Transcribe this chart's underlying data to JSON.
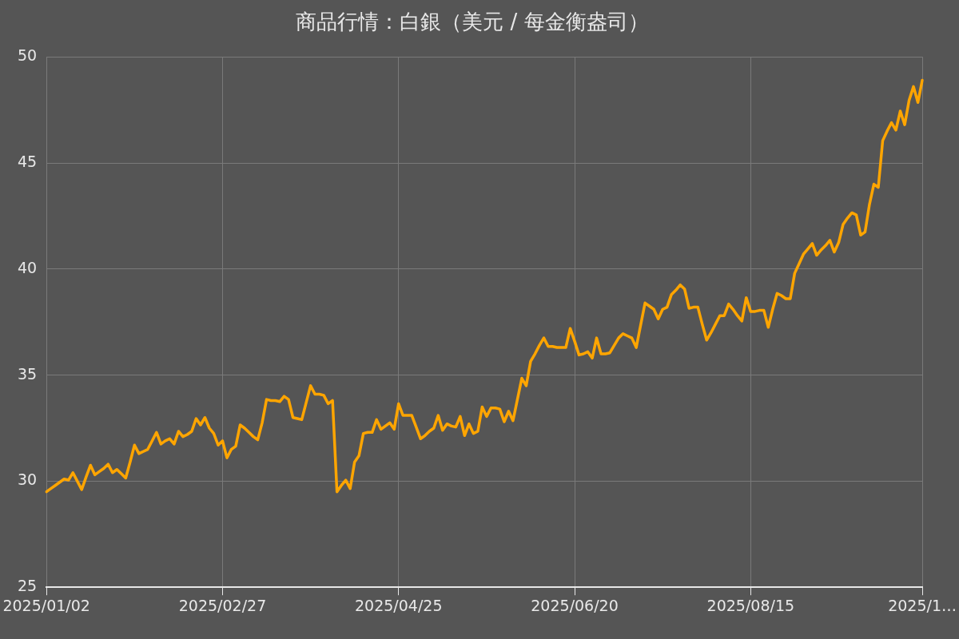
{
  "chart_data": {
    "type": "line",
    "title": "商品行情：白銀（美元 / 每金衡盎司）",
    "categories": [
      "2025/01/02",
      null,
      null,
      null,
      null,
      null,
      null,
      null,
      null,
      null,
      null,
      null,
      null,
      null,
      null,
      null,
      null,
      null,
      null,
      null,
      null,
      null,
      null,
      null,
      null,
      null,
      null,
      null,
      null,
      null,
      null,
      null,
      null,
      null,
      null,
      null,
      null,
      null,
      null,
      null,
      "2025/02/27",
      null,
      null,
      null,
      null,
      null,
      null,
      null,
      null,
      null,
      null,
      null,
      null,
      null,
      null,
      null,
      null,
      null,
      null,
      null,
      null,
      null,
      null,
      null,
      null,
      null,
      null,
      null,
      null,
      null,
      null,
      null,
      null,
      null,
      null,
      null,
      null,
      null,
      null,
      null,
      "2025/04/25",
      null,
      null,
      null,
      null,
      null,
      null,
      null,
      null,
      null,
      null,
      null,
      null,
      null,
      null,
      null,
      null,
      null,
      null,
      null,
      null,
      null,
      null,
      null,
      null,
      null,
      null,
      null,
      null,
      null,
      null,
      null,
      null,
      null,
      null,
      null,
      null,
      null,
      null,
      null,
      "2025/06/20",
      null,
      null,
      null,
      null,
      null,
      null,
      null,
      null,
      null,
      null,
      null,
      null,
      null,
      null,
      null,
      null,
      null,
      null,
      null,
      null,
      null,
      null,
      null,
      null,
      null,
      null,
      null,
      null,
      null,
      null,
      null,
      null,
      null,
      null,
      null,
      null,
      null,
      null,
      null,
      "2025/08/15",
      null,
      null,
      null,
      null,
      null,
      null,
      null,
      null,
      null,
      null,
      null,
      null,
      null,
      null,
      null,
      null,
      null,
      null,
      null,
      null,
      null,
      null,
      null,
      null,
      null,
      null,
      null,
      null,
      null,
      null,
      null,
      null,
      null,
      null,
      null,
      null,
      null,
      null,
      "2025/1…"
    ],
    "series": [
      {
        "color": "#ffa500",
        "values": [
          29.5,
          29.65,
          29.8,
          29.95,
          30.1,
          30.05,
          30.4,
          30.0,
          29.6,
          30.2,
          30.75,
          30.3,
          30.45,
          30.6,
          30.8,
          30.4,
          30.55,
          30.35,
          30.15,
          30.9,
          31.7,
          31.3,
          31.4,
          31.5,
          31.9,
          32.3,
          31.75,
          31.9,
          32.0,
          31.75,
          32.35,
          32.1,
          32.2,
          32.35,
          32.95,
          32.65,
          33.0,
          32.5,
          32.25,
          31.7,
          31.9,
          31.1,
          31.5,
          31.65,
          32.65,
          32.5,
          32.3,
          32.1,
          31.95,
          32.75,
          33.85,
          33.8,
          33.8,
          33.75,
          34.0,
          33.85,
          33.0,
          32.95,
          32.9,
          33.7,
          34.5,
          34.1,
          34.1,
          34.05,
          33.65,
          33.8,
          29.5,
          29.8,
          30.05,
          29.65,
          30.9,
          31.2,
          32.25,
          32.3,
          32.3,
          32.9,
          32.45,
          32.6,
          32.75,
          32.45,
          33.65,
          33.1,
          33.1,
          33.1,
          32.55,
          32.0,
          32.15,
          32.35,
          32.5,
          33.1,
          32.4,
          32.7,
          32.6,
          32.55,
          33.05,
          32.15,
          32.7,
          32.25,
          32.35,
          33.5,
          33.05,
          33.45,
          33.45,
          33.4,
          32.8,
          33.3,
          32.85,
          33.85,
          34.85,
          34.5,
          35.65,
          36.0,
          36.4,
          36.75,
          36.35,
          36.35,
          36.3,
          36.3,
          36.3,
          37.2,
          36.6,
          35.95,
          36.0,
          36.1,
          35.8,
          36.75,
          36.0,
          36.0,
          36.05,
          36.4,
          36.75,
          36.95,
          36.85,
          36.75,
          36.3,
          37.35,
          38.4,
          38.25,
          38.1,
          37.65,
          38.1,
          38.2,
          38.8,
          39.0,
          39.25,
          39.05,
          38.15,
          38.2,
          38.2,
          37.4,
          36.65,
          37.0,
          37.4,
          37.8,
          37.8,
          38.35,
          38.1,
          37.8,
          37.55,
          38.65,
          38.0,
          38.0,
          38.05,
          38.05,
          37.25,
          38.1,
          38.85,
          38.75,
          38.6,
          38.6,
          39.8,
          40.25,
          40.7,
          40.95,
          41.2,
          40.65,
          40.9,
          41.1,
          41.35,
          40.8,
          41.25,
          42.1,
          42.4,
          42.65,
          42.55,
          41.6,
          41.75,
          43.05,
          44.0,
          43.85,
          46.05,
          46.5,
          46.9,
          46.55,
          47.45,
          46.8,
          47.95,
          48.6,
          47.85,
          48.9
        ]
      }
    ],
    "ylim": [
      25,
      50
    ],
    "yticks": [
      25,
      30,
      35,
      40,
      45,
      50
    ],
    "grid": true,
    "line_style": "solid",
    "marker": "none"
  }
}
